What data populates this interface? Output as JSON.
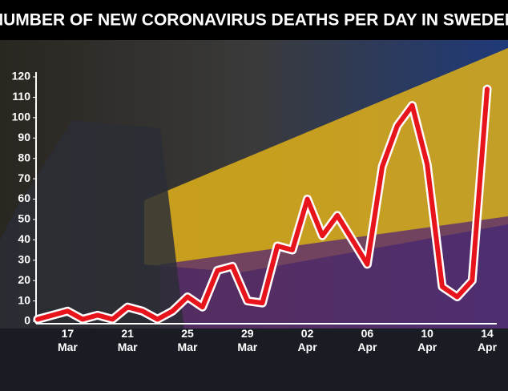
{
  "chart_data": {
    "type": "line",
    "title": "NUMBER OF NEW CORONAVIRUS DEATHS PER DAY IN SWEDEN",
    "categories": [
      null,
      null,
      "17 Mar",
      null,
      null,
      null,
      "21 Mar",
      null,
      null,
      null,
      "25 Mar",
      null,
      null,
      null,
      "29 Mar",
      null,
      null,
      null,
      "02 Apr",
      null,
      null,
      null,
      "06 Apr",
      null,
      null,
      null,
      "10 Apr",
      null,
      null,
      null,
      "14 Apr"
    ],
    "values": [
      1,
      3,
      5,
      1,
      3,
      1,
      7,
      5,
      1,
      5,
      12,
      7,
      25,
      27,
      10,
      9,
      37,
      35,
      60,
      42,
      52,
      40,
      28,
      76,
      96,
      106,
      77,
      17,
      12,
      20,
      114
    ],
    "color": "#e8141c",
    "ylim": [
      0,
      120
    ],
    "yticks": [
      0,
      10,
      20,
      30,
      40,
      50,
      60,
      70,
      80,
      90,
      100,
      110,
      120
    ],
    "grid": false
  }
}
